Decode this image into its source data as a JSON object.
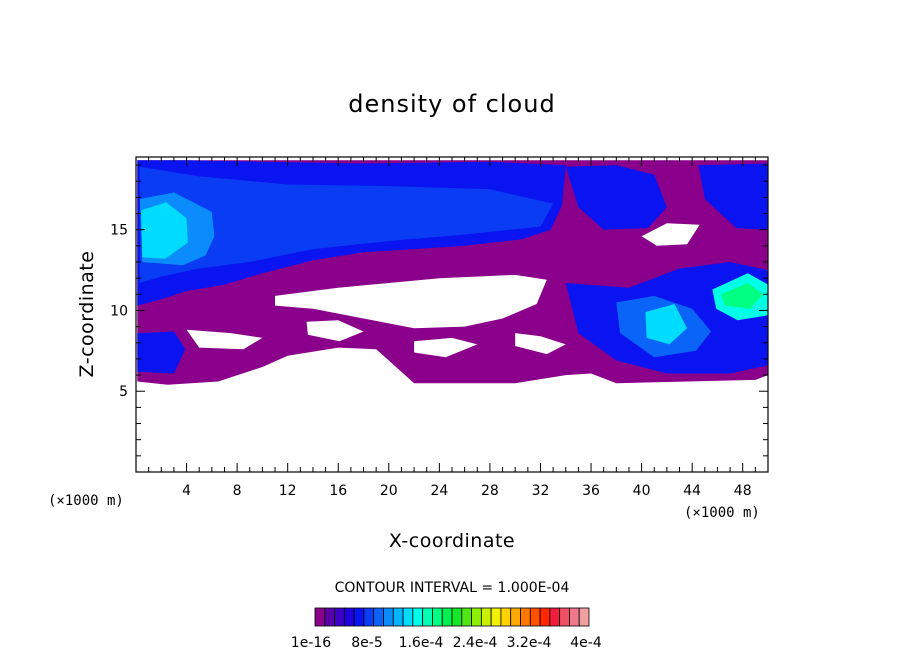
{
  "chart_data": {
    "type": "heatmap",
    "title": "density of cloud",
    "xlabel": "X-coordinate",
    "ylabel": "Z-coordinate",
    "x_unit": "(×1000 m)",
    "x_unit_right": "(×1000 m)",
    "xlim": [
      0,
      50
    ],
    "ylim": [
      0,
      19.5
    ],
    "x_ticks": [
      4,
      8,
      12,
      16,
      20,
      24,
      28,
      32,
      36,
      40,
      44,
      48
    ],
    "y_ticks": [
      5,
      10,
      15
    ],
    "contour_interval_text": "CONTOUR INTERVAL = 1.000E-04",
    "colorbar": {
      "colors": [
        "#8b008b",
        "#5a00a8",
        "#3c00c8",
        "#2000e0",
        "#0a14f0",
        "#0a3cf4",
        "#0a64f8",
        "#0a8cfc",
        "#00b4ff",
        "#00dcff",
        "#00ffe6",
        "#00ffb4",
        "#00ff82",
        "#00f050",
        "#14e628",
        "#50e614",
        "#8cf000",
        "#c8f000",
        "#f0f000",
        "#ffd200",
        "#ffaa00",
        "#ff7800",
        "#ff5000",
        "#ff2800",
        "#f01e3c",
        "#f05064",
        "#f0788c",
        "#f0a0a0"
      ],
      "labels": [
        "1e-16",
        "8e-5",
        "1.6e-4",
        "2.4e-4",
        "3.2e-4",
        "4e-4"
      ]
    },
    "regions": [
      {
        "level": 0,
        "polygon": [
          [
            0.1,
            19.3
          ],
          [
            50,
            19.3
          ],
          [
            50,
            6.0
          ],
          [
            49,
            5.7
          ],
          [
            38,
            5.5
          ],
          [
            36,
            6.1
          ],
          [
            34,
            6.0
          ],
          [
            30,
            5.5
          ],
          [
            22,
            5.5
          ],
          [
            19,
            7.6
          ],
          [
            16,
            7.7
          ],
          [
            12,
            7.2
          ],
          [
            10,
            6.5
          ],
          [
            6.5,
            5.6
          ],
          [
            2.5,
            5.4
          ],
          [
            0.1,
            5.6
          ]
        ]
      },
      {
        "level": 4,
        "polygon": [
          [
            0.1,
            19.3
          ],
          [
            4,
            19.3
          ],
          [
            10,
            19.2
          ],
          [
            18,
            19.1
          ],
          [
            28,
            19.2
          ],
          [
            34,
            19.0
          ],
          [
            33.7,
            16.5
          ],
          [
            32.8,
            15.0
          ],
          [
            30.5,
            14.4
          ],
          [
            26,
            14.0
          ],
          [
            22,
            13.8
          ],
          [
            18,
            13.6
          ],
          [
            14,
            13.1
          ],
          [
            10,
            12.3
          ],
          [
            7,
            11.6
          ],
          [
            4,
            11.2
          ],
          [
            2,
            10.7
          ],
          [
            0.1,
            10.3
          ]
        ]
      },
      {
        "level": 5,
        "polygon": [
          [
            0.3,
            18.9
          ],
          [
            5,
            18.3
          ],
          [
            12,
            17.8
          ],
          [
            20,
            17.7
          ],
          [
            28,
            17.5
          ],
          [
            33,
            16.6
          ],
          [
            32,
            15.2
          ],
          [
            26,
            14.7
          ],
          [
            20,
            14.3
          ],
          [
            14,
            13.8
          ],
          [
            9,
            13.0
          ],
          [
            5,
            12.6
          ],
          [
            2,
            12.1
          ],
          [
            0.3,
            11.7
          ]
        ]
      },
      {
        "level": 7,
        "polygon": [
          [
            0.3,
            16.9
          ],
          [
            3,
            17.3
          ],
          [
            6,
            16.1
          ],
          [
            6.2,
            14.6
          ],
          [
            5.5,
            13.4
          ],
          [
            3.7,
            12.8
          ],
          [
            0.5,
            13.0
          ]
        ]
      },
      {
        "level": 9,
        "polygon": [
          [
            0.4,
            16.2
          ],
          [
            2.4,
            16.7
          ],
          [
            4,
            15.7
          ],
          [
            4.1,
            14.2
          ],
          [
            2.3,
            13.2
          ],
          [
            0.5,
            13.3
          ]
        ]
      },
      {
        "level": 4,
        "polygon": [
          [
            0.1,
            8.6
          ],
          [
            3,
            8.7
          ],
          [
            3.9,
            7.6
          ],
          [
            3,
            6.1
          ],
          [
            0.1,
            6.2
          ]
        ]
      },
      {
        "level": 4,
        "polygon": [
          [
            34,
            18.9
          ],
          [
            38,
            19.0
          ],
          [
            41,
            18.4
          ],
          [
            42,
            16.4
          ],
          [
            40.5,
            15.1
          ],
          [
            37,
            15.0
          ],
          [
            35,
            16.4
          ]
        ]
      },
      {
        "level": 4,
        "polygon": [
          [
            44.5,
            19.0
          ],
          [
            50,
            19.1
          ],
          [
            50,
            15.0
          ],
          [
            47.5,
            15.1
          ],
          [
            45,
            16.9
          ]
        ]
      },
      {
        "level": 4,
        "polygon": [
          [
            34,
            11.7
          ],
          [
            39,
            11.4
          ],
          [
            43,
            12.6
          ],
          [
            47,
            13.0
          ],
          [
            50,
            12.5
          ],
          [
            50,
            6.6
          ],
          [
            47,
            6.1
          ],
          [
            42,
            6.1
          ],
          [
            38,
            6.9
          ],
          [
            35,
            8.6
          ]
        ]
      },
      {
        "level": 6,
        "polygon": [
          [
            38,
            10.5
          ],
          [
            41,
            10.9
          ],
          [
            44,
            10.1
          ],
          [
            45.5,
            8.7
          ],
          [
            44.3,
            7.5
          ],
          [
            41,
            7.1
          ],
          [
            38.3,
            8.6
          ]
        ]
      },
      {
        "level": 9,
        "polygon": [
          [
            40.3,
            9.9
          ],
          [
            42.6,
            10.4
          ],
          [
            43.6,
            8.9
          ],
          [
            42.2,
            7.9
          ],
          [
            40.4,
            8.3
          ]
        ]
      },
      {
        "level": 10,
        "polygon": [
          [
            45.6,
            11.3
          ],
          [
            48.4,
            12.3
          ],
          [
            50,
            11.6
          ],
          [
            50,
            9.7
          ],
          [
            47.6,
            9.4
          ],
          [
            45.9,
            10.1
          ]
        ]
      },
      {
        "level": 12,
        "polygon": [
          [
            46.3,
            11.0
          ],
          [
            48.4,
            11.7
          ],
          [
            49.6,
            11.0
          ],
          [
            48.6,
            10.1
          ],
          [
            46.6,
            10.3
          ]
        ]
      }
    ],
    "white_holes": [
      [
        [
          11,
          10.9
        ],
        [
          16,
          11.4
        ],
        [
          24,
          12.0
        ],
        [
          30,
          12.2
        ],
        [
          32.5,
          11.9
        ],
        [
          31.7,
          10.4
        ],
        [
          29,
          9.5
        ],
        [
          26,
          9.0
        ],
        [
          22,
          8.9
        ],
        [
          18,
          9.5
        ],
        [
          14,
          10.1
        ],
        [
          11,
          10.3
        ]
      ],
      [
        [
          40,
          14.6
        ],
        [
          42,
          15.4
        ],
        [
          44.6,
          15.3
        ],
        [
          43.6,
          14.1
        ],
        [
          41.2,
          14.0
        ]
      ],
      [
        [
          13.5,
          9.3
        ],
        [
          16,
          9.4
        ],
        [
          18,
          8.7
        ],
        [
          16.1,
          8.1
        ],
        [
          13.6,
          8.5
        ]
      ],
      [
        [
          30,
          8.6
        ],
        [
          32,
          8.4
        ],
        [
          34,
          7.9
        ],
        [
          32.5,
          7.3
        ],
        [
          30,
          7.8
        ]
      ],
      [
        [
          4,
          8.8
        ],
        [
          7.5,
          8.6
        ],
        [
          10,
          8.3
        ],
        [
          8.5,
          7.6
        ],
        [
          5,
          7.7
        ]
      ],
      [
        [
          22,
          8.1
        ],
        [
          25,
          8.3
        ],
        [
          27,
          7.9
        ],
        [
          24.5,
          7.1
        ],
        [
          22,
          7.4
        ]
      ]
    ]
  }
}
